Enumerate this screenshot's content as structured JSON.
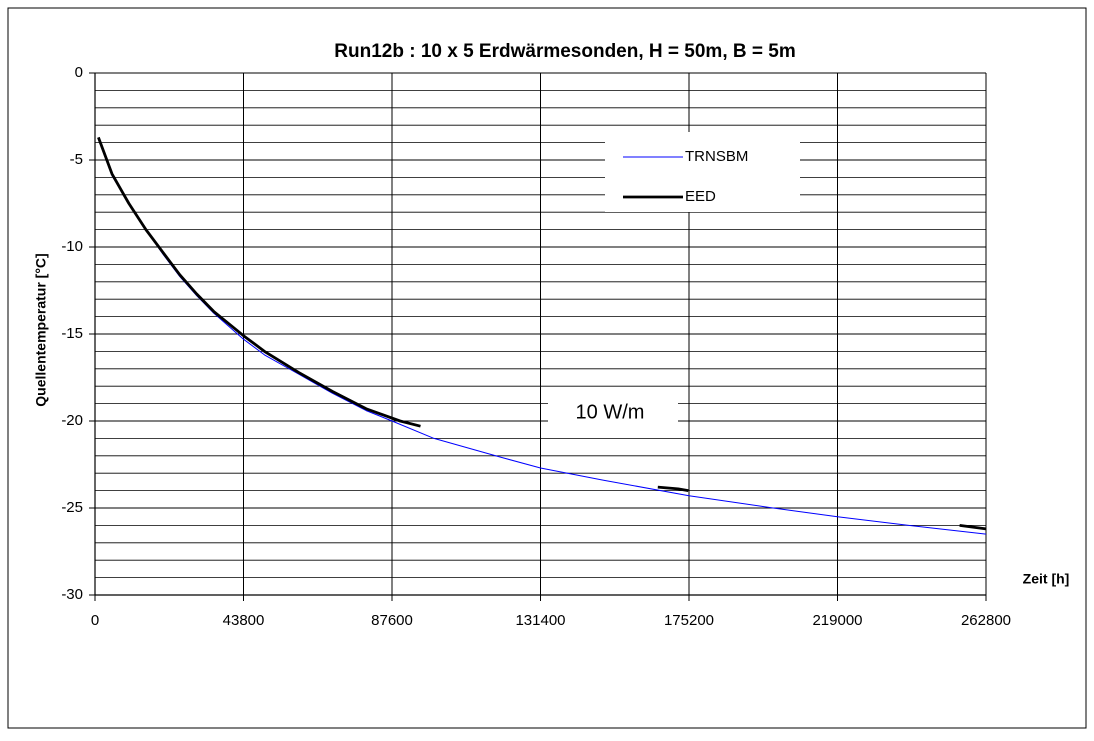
{
  "chart_data": {
    "type": "line",
    "title": "Run12b :  10 x 5 Erdwärmesonden,    H = 50m, B = 5m",
    "xlabel": "Zeit [h]",
    "ylabel": "Quellentemperatur  [°C]",
    "annotation": "10 W/m",
    "xlim": [
      0,
      262800
    ],
    "xticks": [
      0,
      43800,
      87600,
      131400,
      175200,
      219000,
      262800
    ],
    "ylim": [
      -30,
      0
    ],
    "yticks": [
      0,
      -5,
      -10,
      -15,
      -20,
      -25,
      -30
    ],
    "grid": true,
    "y_minor_grid": 1,
    "legend": "upper right",
    "series": [
      {
        "name": "TRNSBM",
        "color": "#0000ff",
        "x": [
          1000,
          5000,
          10000,
          15000,
          20000,
          25000,
          30000,
          35000,
          43800,
          50000,
          60000,
          70000,
          80000,
          87600,
          100000,
          120000,
          131400,
          150000,
          175200,
          200000,
          219000,
          240000,
          262800
        ],
        "values": [
          -3.8,
          -5.9,
          -7.5,
          -9.0,
          -10.4,
          -11.7,
          -12.8,
          -13.8,
          -15.3,
          -16.2,
          -17.3,
          -18.4,
          -19.4,
          -20.0,
          -21.0,
          -22.1,
          -22.7,
          -23.4,
          -24.3,
          -25.0,
          -25.5,
          -26.0,
          -26.5
        ]
      },
      {
        "name": "EED",
        "color": "#000000",
        "x": [
          1000,
          5000,
          10000,
          15000,
          20000,
          25000,
          30000,
          35000,
          43800,
          50000,
          60000,
          70000,
          80000,
          90000,
          96000,
          130000,
          166000,
          172000,
          175000,
          220000,
          255000,
          262800
        ],
        "values": [
          -3.7,
          -5.8,
          -7.5,
          -9.0,
          -10.3,
          -11.6,
          -12.7,
          -13.7,
          -15.1,
          -16.0,
          -17.2,
          -18.3,
          -19.3,
          -20.0,
          -20.3,
          null,
          -23.8,
          -23.9,
          -24.0,
          null,
          -26.0,
          -26.2
        ]
      }
    ]
  }
}
